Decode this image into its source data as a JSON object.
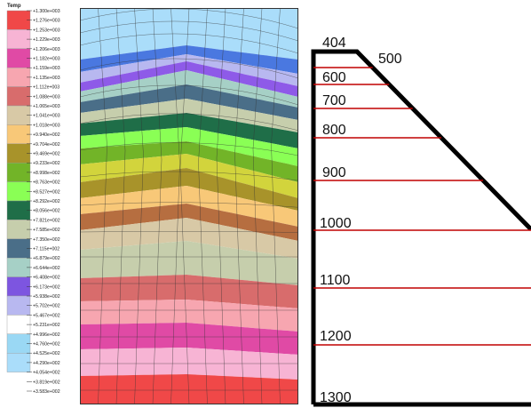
{
  "legend": {
    "title": "Temp",
    "values": [
      "+1.300e+003",
      "+1.276e+003",
      "+1.253e+003",
      "+1.229e+003",
      "+1.206e+003",
      "+1.182e+003",
      "+1.159e+003",
      "+1.135e+003",
      "+1.112e+003",
      "+1.088e+003",
      "+1.065e+003",
      "+1.041e+003",
      "+1.018e+003",
      "+9.940e+002",
      "+9.704e+002",
      "+9.469e+002",
      "+9.233e+002",
      "+8.998e+002",
      "+8.763e+002",
      "+8.527e+002",
      "+8.292e+002",
      "+8.056e+002",
      "+7.821e+002",
      "+7.585e+002",
      "+7.350e+002",
      "+7.115e+002",
      "+6.879e+002",
      "+6.644e+002",
      "+6.408e+002",
      "+6.173e+002",
      "+5.938e+002",
      "+5.702e+002",
      "+5.467e+002",
      "+5.231e+002",
      "+4.996e+002",
      "+4.760e+002",
      "+4.525e+002",
      "+4.290e+002",
      "+4.054e+002",
      "+3.819e+002",
      "+3.583e+002"
    ],
    "colors": [
      "#f04848",
      "#f7b4d4",
      "#e04aa5",
      "#f7a6b0",
      "#d86c6c",
      "#d8c9a6",
      "#f8c878",
      "#a8932a",
      "#72b428",
      "#8aff55",
      "#1f6e48",
      "#c6ceac",
      "#4a6e88",
      "#a6d0c6",
      "#7d55e0",
      "#b8b8f0",
      "#ffffff",
      "#9ad8f4",
      "#aaddfa"
    ]
  },
  "section": {
    "top_label": "404",
    "labels": [
      "500",
      "600",
      "700",
      "800",
      "900",
      "1000",
      "1100",
      "1200",
      "1300"
    ]
  },
  "colors": {
    "section_line": "#c00000",
    "wall": "#000000"
  }
}
